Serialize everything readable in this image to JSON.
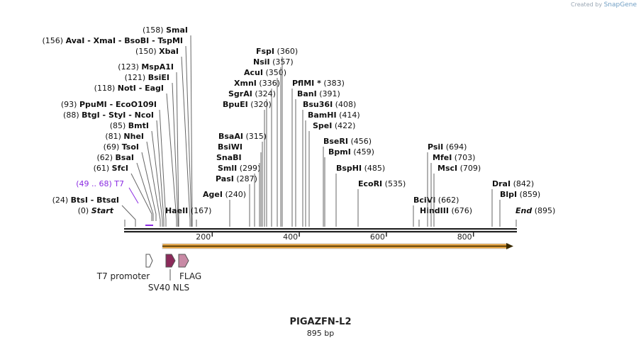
{
  "credit": {
    "prefix": "Created by",
    "brand": "SnapGene"
  },
  "plasmid": {
    "name": "PIGAZFN-L2",
    "length_label": "895 bp"
  },
  "colors": {
    "line": "#555555",
    "text": "#111111",
    "primer": "#8a2be2",
    "orf": "#e8a33d",
    "t7": "#ffffff",
    "nls": "#8b2a5a",
    "flag": "#c88aa5"
  },
  "axis": {
    "ticks": [
      {
        "value": 200,
        "label": "200"
      },
      {
        "value": 400,
        "label": "400"
      },
      {
        "value": 600,
        "label": "600"
      },
      {
        "value": 800,
        "label": "800"
      }
    ]
  },
  "sites": [
    {
      "name": "Start",
      "pos": "(0)",
      "style": "italic"
    },
    {
      "name": "BtsI - BtsαI",
      "pos": "(24)"
    },
    {
      "name": "SfcI",
      "pos": "(61)"
    },
    {
      "name": "BsaI",
      "pos": "(62)"
    },
    {
      "name": "TsoI",
      "pos": "(69)"
    },
    {
      "name": "NheI",
      "pos": "(81)"
    },
    {
      "name": "BmtI",
      "pos": "(85)"
    },
    {
      "name": "BtgI - StyI - NcoI",
      "pos": "(88)"
    },
    {
      "name": "PpuMI - EcoO109I",
      "pos": "(93)"
    },
    {
      "name": "NotI - EagI",
      "pos": "(118)"
    },
    {
      "name": "BsiEI",
      "pos": "(121)"
    },
    {
      "name": "MspA1I",
      "pos": "(123)"
    },
    {
      "name": "XbaI",
      "pos": "(150)"
    },
    {
      "name": "AvaI - XmaI - BsoBI - TspMI",
      "pos": "(156)"
    },
    {
      "name": "SmaI",
      "pos": "(158)"
    },
    {
      "name": "HaeII",
      "pos": "(167)"
    },
    {
      "name": "AgeI",
      "pos": "(240)"
    },
    {
      "name": "PasI",
      "pos": "(287)"
    },
    {
      "name": "SmlI",
      "pos": "(299)"
    },
    {
      "name": "SnaBI",
      "pos": ""
    },
    {
      "name": "BsiWI",
      "pos": ""
    },
    {
      "name": "BsaAI",
      "pos": "(315)"
    },
    {
      "name": "BpuEI",
      "pos": "(320)"
    },
    {
      "name": "SgrAI",
      "pos": "(324)"
    },
    {
      "name": "XmnI",
      "pos": "(336)"
    },
    {
      "name": "AcuI",
      "pos": "(350)"
    },
    {
      "name": "NsiI",
      "pos": "(357)"
    },
    {
      "name": "FspI",
      "pos": "(360)"
    },
    {
      "name": "PflMI *",
      "pos": "(383)"
    },
    {
      "name": "BanI",
      "pos": "(391)"
    },
    {
      "name": "Bsu36I",
      "pos": "(408)"
    },
    {
      "name": "BamHI",
      "pos": "(414)"
    },
    {
      "name": "SpeI",
      "pos": "(422)"
    },
    {
      "name": "BseRI",
      "pos": "(456)"
    },
    {
      "name": "BpmI",
      "pos": "(459)"
    },
    {
      "name": "BspHI",
      "pos": "(485)"
    },
    {
      "name": "EcoRI",
      "pos": "(535)"
    },
    {
      "name": "BciVI",
      "pos": "(662)"
    },
    {
      "name": "HindIII",
      "pos": "(676)"
    },
    {
      "name": "PsiI",
      "pos": "(694)"
    },
    {
      "name": "MfeI",
      "pos": "(703)"
    },
    {
      "name": "MscI",
      "pos": "(709)"
    },
    {
      "name": "DraI",
      "pos": "(842)"
    },
    {
      "name": "BlpI",
      "pos": "(859)"
    },
    {
      "name": "End",
      "pos": "(895)",
      "style": "italic"
    }
  ],
  "primer": {
    "name": "T7",
    "range": "(49 .. 68)"
  },
  "features": [
    {
      "name": "T7 promoter"
    },
    {
      "name": "SV40 NLS"
    },
    {
      "name": "FLAG"
    }
  ]
}
